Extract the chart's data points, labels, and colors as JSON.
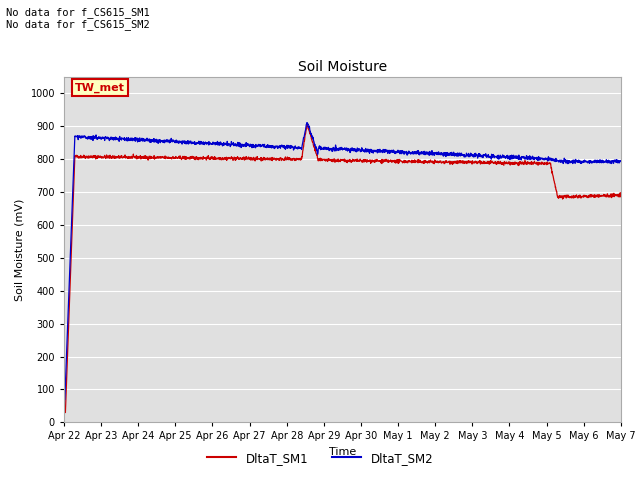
{
  "title": "Soil Moisture",
  "xlabel": "Time",
  "ylabel": "Soil Moisture (mV)",
  "ylim": [
    0,
    1050
  ],
  "yticks": [
    0,
    100,
    200,
    300,
    400,
    500,
    600,
    700,
    800,
    900,
    1000
  ],
  "annotation_lines": [
    "No data for f_CS615_SM1",
    "No data for f_CS615_SM2"
  ],
  "legend_label1": "DltaT_SM1",
  "legend_label2": "DltaT_SM2",
  "box_label": "TW_met",
  "line_color1": "#cc0000",
  "line_color2": "#0000cc",
  "background_color": "#e0e0e0",
  "fig_background": "#ffffff",
  "xtick_labels": [
    "Apr 22",
    "Apr 23",
    "Apr 24",
    "Apr 25",
    "Apr 26",
    "Apr 27",
    "Apr 28",
    "Apr 29",
    "Apr 30",
    "May 1",
    "May 2",
    "May 3",
    "May 4",
    "May 5",
    "May 6",
    "May 7"
  ]
}
